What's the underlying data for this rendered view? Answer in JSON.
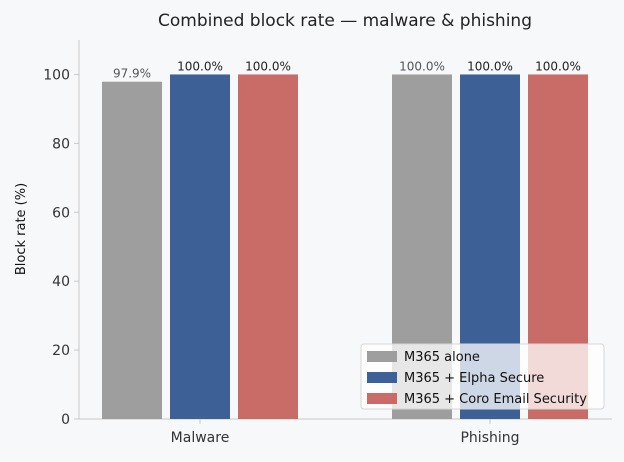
{
  "chart_data": {
    "type": "bar",
    "title": "Combined block rate — malware & phishing",
    "xlabel": "",
    "ylabel": "Block rate (%)",
    "ylim": [
      0,
      110
    ],
    "yticks": [
      0,
      20,
      40,
      60,
      80,
      100
    ],
    "categories": [
      "Malware",
      "Phishing"
    ],
    "series": [
      {
        "name": "M365 alone",
        "color": "#9e9e9e",
        "values": [
          97.9,
          100.0
        ],
        "labels": [
          "97.9%",
          "100.0%"
        ],
        "label_color": "#555555"
      },
      {
        "name": "M365 + Elpha Secure",
        "color": "#3d6096",
        "values": [
          100.0,
          100.0
        ],
        "labels": [
          "100.0%",
          "100.0%"
        ],
        "label_color": "#222222"
      },
      {
        "name": "M365 + Coro Email Security",
        "color": "#c96b67",
        "values": [
          100.0,
          100.0
        ],
        "labels": [
          "100.0%",
          "100.0%"
        ],
        "label_color": "#222222"
      }
    ],
    "grid": false,
    "legend_position": "lower-right"
  }
}
